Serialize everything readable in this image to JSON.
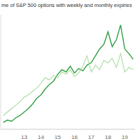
{
  "chart_data": {
    "type": "line",
    "title": "me of S&P 500 options with weekly and monthly expiries",
    "x": [
      2011.75,
      2012,
      2012.25,
      2012.5,
      2012.75,
      2013,
      2013.25,
      2013.5,
      2013.75,
      2014,
      2014.25,
      2014.5,
      2014.75,
      2015,
      2015.25,
      2015.5,
      2015.75,
      2016,
      2016.25,
      2016.5,
      2016.75,
      2017,
      2017.25,
      2017.5,
      2017.75,
      2018,
      2018.25,
      2018.5,
      2018.75,
      2019,
      2019.25,
      2019.5
    ],
    "series": [
      {
        "color": "#2e9e3e",
        "values": [
          6,
          8,
          7,
          10,
          12,
          15,
          18,
          22,
          27,
          30,
          35,
          39,
          42,
          48,
          52,
          50,
          55,
          49,
          53,
          51,
          56,
          58,
          64,
          70,
          74,
          85,
          72,
          78,
          91,
          70,
          66,
          61
        ]
      },
      {
        "color": "#a8dca0",
        "values": [
          12,
          15,
          18,
          21,
          24,
          28,
          30,
          33,
          36,
          40,
          45,
          43,
          47,
          45,
          50,
          48,
          52,
          46,
          49,
          55,
          64,
          50,
          56,
          52,
          60,
          58,
          62,
          54,
          66,
          50,
          54,
          52
        ]
      }
    ],
    "xlim": [
      2011.6,
      2019.6
    ],
    "xticks": [
      {
        "value": 2013,
        "label": "13"
      },
      {
        "value": 2014,
        "label": "14"
      },
      {
        "value": 2015,
        "label": "15"
      },
      {
        "value": 2016,
        "label": "16"
      },
      {
        "value": 2017,
        "label": "17"
      },
      {
        "value": 2018,
        "label": "18"
      },
      {
        "value": 2019,
        "label": "19"
      }
    ],
    "ylim": [
      0,
      100
    ],
    "grid": false,
    "tick_labels": "x"
  }
}
